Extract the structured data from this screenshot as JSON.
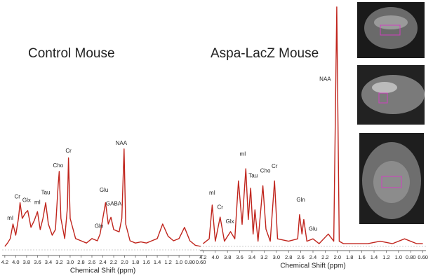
{
  "chart_data": [
    {
      "type": "line",
      "title": "Control Mouse",
      "xlabel": "Chemical Shift (ppm)",
      "color": "#c0251d",
      "xlim": [
        4.25,
        0.55
      ],
      "ylim": [
        0,
        100
      ],
      "xticks": [
        4.2,
        {
          "value": 4,
          "label": "4.0"
        },
        3.8,
        3.6,
        3.4,
        3.2,
        {
          "value": 3,
          "label": "3.0"
        },
        2.8,
        2.6,
        2.4,
        2.2,
        {
          "value": 2,
          "label": "2.0"
        },
        1.8,
        1.6,
        1.4,
        1.2,
        {
          "value": 1,
          "label": "1.0"
        },
        {
          "value": 0.8,
          "label": "0.80"
        },
        {
          "value": 0.6,
          "label": "0.60"
        }
      ],
      "series": [
        {
          "x": [
            4.2,
            4.15,
            4.1,
            4.05,
            4.0,
            3.95,
            3.92,
            3.88,
            3.82,
            3.78,
            3.72,
            3.66,
            3.6,
            3.55,
            3.5,
            3.45,
            3.4,
            3.33,
            3.27,
            3.22,
            3.2,
            3.17,
            3.1,
            3.05,
            3.03,
            3.0,
            2.9,
            2.8,
            2.7,
            2.6,
            2.5,
            2.45,
            2.4,
            2.35,
            2.3,
            2.25,
            2.2,
            2.1,
            2.05,
            2.01,
            1.98,
            1.9,
            1.8,
            1.7,
            1.6,
            1.5,
            1.4,
            1.3,
            1.2,
            1.1,
            1.0,
            0.9,
            0.8,
            0.7,
            0.6
          ],
          "values": [
            5,
            8,
            12,
            25,
            15,
            30,
            44,
            30,
            35,
            37,
            22,
            28,
            36,
            20,
            30,
            44,
            25,
            15,
            20,
            60,
            72,
            30,
            12,
            40,
            84,
            30,
            12,
            10,
            8,
            12,
            10,
            16,
            30,
            44,
            25,
            31,
            20,
            18,
            30,
            92,
            25,
            10,
            8,
            9,
            8,
            10,
            12,
            25,
            14,
            10,
            12,
            22,
            10,
            6,
            5
          ]
        }
      ],
      "annotations": [
        {
          "text": "mI",
          "x": 4.1,
          "y": 30
        },
        {
          "text": "Cr",
          "x": 3.97,
          "y": 49
        },
        {
          "text": "Glx",
          "x": 3.8,
          "y": 46
        },
        {
          "text": "mI",
          "x": 3.6,
          "y": 44
        },
        {
          "text": "Tau",
          "x": 3.45,
          "y": 53
        },
        {
          "text": "Cho",
          "x": 3.22,
          "y": 77
        },
        {
          "text": "Cr",
          "x": 3.03,
          "y": 90
        },
        {
          "text": "Gln",
          "x": 2.47,
          "y": 23
        },
        {
          "text": "Glu",
          "x": 2.38,
          "y": 55
        },
        {
          "text": "GABA",
          "x": 2.2,
          "y": 43
        },
        {
          "text": "NAA",
          "x": 2.06,
          "y": 97
        }
      ]
    },
    {
      "type": "line",
      "title": "Aspa-LacZ Mouse",
      "xlabel": "Chemical Shift (ppm)",
      "color": "#c0251d",
      "xlim": [
        4.25,
        0.55
      ],
      "ylim": [
        0,
        100
      ],
      "xticks": [
        4.2,
        {
          "value": 4,
          "label": "4.0"
        },
        3.8,
        3.6,
        3.4,
        3.2,
        {
          "value": 3,
          "label": "3.0"
        },
        2.8,
        2.6,
        2.4,
        2.2,
        {
          "value": 2,
          "label": "2.0"
        },
        1.8,
        1.6,
        1.4,
        1.2,
        {
          "value": 1,
          "label": "1.0"
        },
        {
          "value": 0.8,
          "label": "0.80"
        },
        {
          "value": 0.6,
          "label": "0.60"
        }
      ],
      "series": [
        {
          "x": [
            4.2,
            4.1,
            4.05,
            4.0,
            3.92,
            3.85,
            3.75,
            3.68,
            3.62,
            3.56,
            3.5,
            3.46,
            3.42,
            3.38,
            3.35,
            3.3,
            3.22,
            3.17,
            3.1,
            3.03,
            2.98,
            2.8,
            2.65,
            2.62,
            2.58,
            2.55,
            2.5,
            2.4,
            2.3,
            2.15,
            2.06,
            2.01,
            1.97,
            1.9,
            1.7,
            1.5,
            1.3,
            1.1,
            0.9,
            0.7,
            0.6
          ],
          "values": [
            2,
            4,
            18,
            3,
            13,
            3,
            7,
            4,
            28,
            10,
            33,
            12,
            25,
            6,
            16,
            3,
            26,
            8,
            3,
            28,
            4,
            3,
            4,
            14,
            6,
            12,
            3,
            4,
            2,
            6,
            3,
            100,
            3,
            2,
            2,
            2,
            3,
            2,
            4,
            2,
            2
          ]
        }
      ],
      "annotations": [
        {
          "text": "mI",
          "x": 4.05,
          "y": 23
        },
        {
          "text": "Cr",
          "x": 3.92,
          "y": 17
        },
        {
          "text": "Glx",
          "x": 3.76,
          "y": 11
        },
        {
          "text": "mI",
          "x": 3.55,
          "y": 39
        },
        {
          "text": "Tau",
          "x": 3.38,
          "y": 30
        },
        {
          "text": "Cho",
          "x": 3.18,
          "y": 32
        },
        {
          "text": "Cr",
          "x": 3.03,
          "y": 34
        },
        {
          "text": "Gln",
          "x": 2.6,
          "y": 20
        },
        {
          "text": "Glu",
          "x": 2.4,
          "y": 8
        },
        {
          "text": "NAA",
          "x": 2.2,
          "y": 70
        }
      ]
    }
  ]
}
